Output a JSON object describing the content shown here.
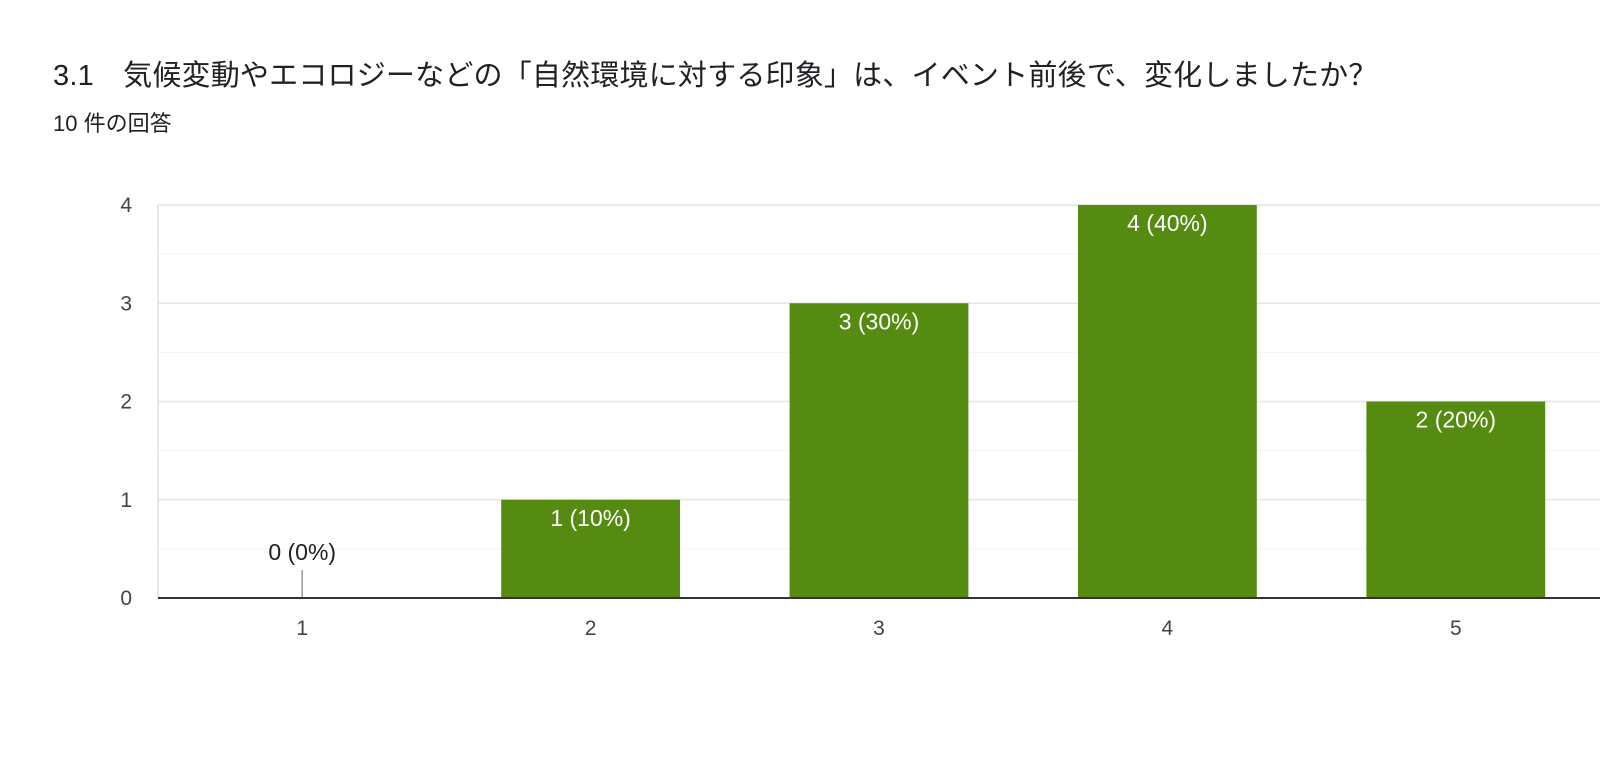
{
  "header": {
    "title": "3.1　気候変動やエコロジーなどの「自然環境に対する印象」は、イベント前後で、変化しましたか？",
    "response_count": "10 件の回答"
  },
  "chart_data": {
    "type": "bar",
    "categories": [
      "1",
      "2",
      "3",
      "4",
      "5"
    ],
    "values": [
      0,
      1,
      3,
      4,
      2
    ],
    "data_labels": [
      "0 (0%)",
      "1 (10%)",
      "3 (30%)",
      "4 (40%)",
      "2 (20%)"
    ],
    "yticks": [
      "0",
      "1",
      "2",
      "3",
      "4"
    ],
    "ylim": [
      0,
      4
    ],
    "grid": true,
    "bar_color": "#548b10"
  }
}
